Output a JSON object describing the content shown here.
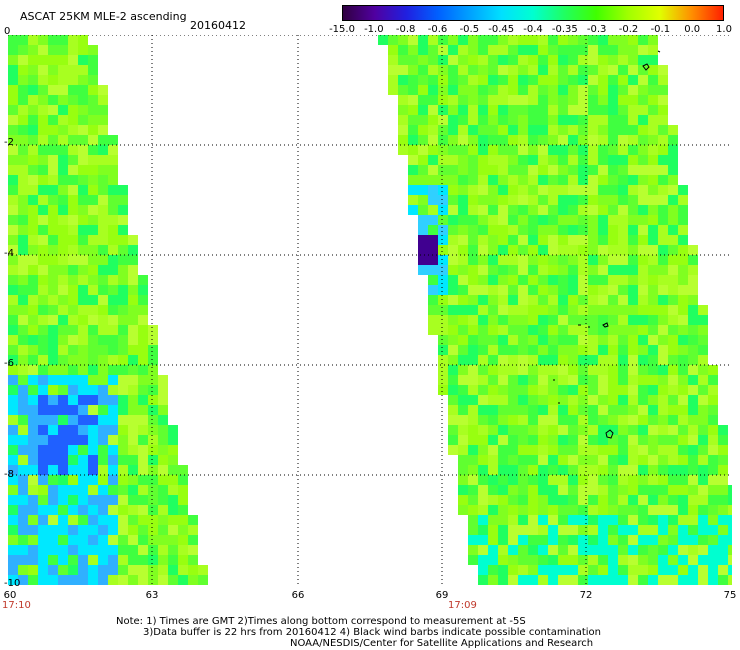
{
  "header": {
    "title": "ASCAT 25KM MLE-2 ascending",
    "date": "20160412"
  },
  "colorbar": {
    "labels": [
      "-15.0",
      "-1.0",
      "-0.8",
      "-0.6",
      "-0.5",
      "-0.45",
      "-0.4",
      "-0.35",
      "-0.3",
      "-0.2",
      "-0.1",
      "0.0",
      "1.0"
    ],
    "colors": [
      "#300040",
      "#5000a0",
      "#2020e0",
      "#0060ff",
      "#00a0ff",
      "#00e0ff",
      "#00ffd0",
      "#20ff60",
      "#40ff00",
      "#a0ff00",
      "#e0ff00",
      "#ff9000",
      "#ff2000"
    ]
  },
  "axes": {
    "y_ticks": [
      "0",
      "-2",
      "-4",
      "-6",
      "-8",
      "-10"
    ],
    "x_ticks": [
      "60",
      "63",
      "66",
      "69",
      "72",
      "75"
    ],
    "times": [
      "17:10",
      "17:09"
    ]
  },
  "notes": {
    "line1": "Note: 1) Times are GMT 2)Times along bottom correspond to measurement at -5S",
    "line2": "3)Data buffer is 22 hrs from 20160412 4) Black wind barbs indicate possible contamination",
    "line3": "NOAA/NESDIS/Center for Satellite Applications and Research"
  }
}
